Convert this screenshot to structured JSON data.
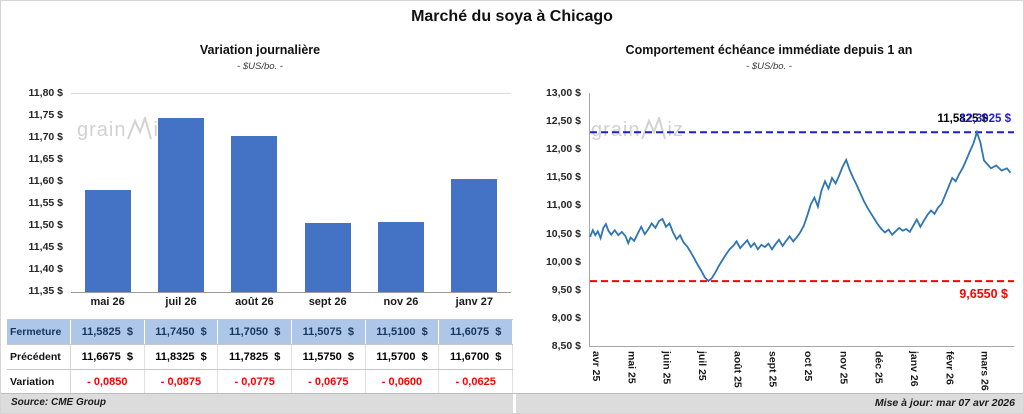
{
  "page": {
    "title": "Marché du soya à Chicago",
    "source": "Source: CME Group",
    "updated": "Mise à jour: mar 07 avr 2026"
  },
  "watermark": {
    "left": "grain",
    "right": "iz"
  },
  "colors": {
    "bar": "#4472C4",
    "line": "#2E75B6",
    "hline_high": "#1F1FC8",
    "hline_low": "#FF0000",
    "fermeture_bg": "#AEC6E8",
    "variation_text": "#FF0000"
  },
  "left_chart": {
    "title": "Variation journalière",
    "subtitle": "- $US/bo. -",
    "chart_data": {
      "type": "bar",
      "categories": [
        "mai 26",
        "juil 26",
        "août 26",
        "sept 26",
        "nov 26",
        "janv 27"
      ],
      "values": [
        11.5825,
        11.745,
        11.705,
        11.5075,
        11.51,
        11.6075
      ],
      "title": "Variation journalière",
      "xlabel": "",
      "ylabel": "$US/bo.",
      "ylim": [
        11.35,
        11.8
      ],
      "ytick_labels": [
        "11,80 $",
        "11,75 $",
        "11,70 $",
        "11,65 $",
        "11,60 $",
        "11,55 $",
        "11,50 $",
        "11,45 $",
        "11,40 $",
        "11,35 $"
      ],
      "grid": false,
      "bar_color": "#4472C4"
    },
    "table": {
      "rows": [
        {
          "id": "fermeture",
          "label": "Fermeture",
          "values": [
            "11,5825  $",
            "11,7450  $",
            "11,7050  $",
            "11,5075  $",
            "11,5100  $",
            "11,6075  $"
          ]
        },
        {
          "id": "precedent",
          "label": "Précédent",
          "values": [
            "11,6675  $",
            "11,8325  $",
            "11,7825  $",
            "11,5750  $",
            "11,5700  $",
            "11,6700  $"
          ]
        },
        {
          "id": "variation",
          "label": "Variation",
          "values": [
            "- 0,0850",
            "- 0,0875",
            "- 0,0775",
            "- 0,0675",
            "- 0,0600",
            "- 0,0625"
          ]
        }
      ]
    }
  },
  "right_chart": {
    "title": "Comportement échéance immédiate depuis 1 an",
    "subtitle": "- $US/bo. -",
    "chart_data": {
      "type": "line",
      "x_labels": [
        "avr 25",
        "mai 25",
        "juin 25",
        "juil 25",
        "août 25",
        "sept 25",
        "oct 25",
        "nov 25",
        "déc 25",
        "janv 26",
        "févr 26",
        "mars 26"
      ],
      "ylim": [
        8.5,
        13.0
      ],
      "ytick_labels": [
        "13,00 $",
        "12,50 $",
        "12,00 $",
        "11,50 $",
        "11,00 $",
        "10,50 $",
        "10,00 $",
        "9,50 $",
        "9,00 $",
        "8,50 $"
      ],
      "grid": false,
      "legend": "none",
      "last_label": "11,5825 $",
      "hline_high": {
        "value": 12.3025,
        "label": "12,3025 $",
        "color": "#1F1FC8"
      },
      "hline_low": {
        "value": 9.655,
        "label": "9,6550 $",
        "color": "#FF0000"
      },
      "series": [
        {
          "name": "échéance immédiate",
          "color": "#2E75B6",
          "points": [
            [
              0,
              10.44
            ],
            [
              0.08,
              10.56
            ],
            [
              0.15,
              10.47
            ],
            [
              0.22,
              10.54
            ],
            [
              0.3,
              10.42
            ],
            [
              0.38,
              10.6
            ],
            [
              0.45,
              10.67
            ],
            [
              0.52,
              10.55
            ],
            [
              0.6,
              10.48
            ],
            [
              0.7,
              10.56
            ],
            [
              0.8,
              10.47
            ],
            [
              0.9,
              10.53
            ],
            [
              1,
              10.46
            ],
            [
              1.08,
              10.33
            ],
            [
              1.15,
              10.43
            ],
            [
              1.25,
              10.37
            ],
            [
              1.35,
              10.5
            ],
            [
              1.45,
              10.62
            ],
            [
              1.55,
              10.49
            ],
            [
              1.65,
              10.58
            ],
            [
              1.75,
              10.68
            ],
            [
              1.85,
              10.6
            ],
            [
              1.95,
              10.72
            ],
            [
              2.05,
              10.76
            ],
            [
              2.15,
              10.62
            ],
            [
              2.25,
              10.68
            ],
            [
              2.35,
              10.52
            ],
            [
              2.45,
              10.4
            ],
            [
              2.55,
              10.47
            ],
            [
              2.65,
              10.34
            ],
            [
              2.75,
              10.27
            ],
            [
              2.85,
              10.17
            ],
            [
              2.95,
              10.06
            ],
            [
              3.05,
              9.94
            ],
            [
              3.15,
              9.84
            ],
            [
              3.25,
              9.72
            ],
            [
              3.35,
              9.655
            ],
            [
              3.45,
              9.71
            ],
            [
              3.55,
              9.81
            ],
            [
              3.65,
              9.93
            ],
            [
              3.75,
              10.03
            ],
            [
              3.85,
              10.13
            ],
            [
              3.95,
              10.22
            ],
            [
              4.05,
              10.28
            ],
            [
              4.15,
              10.36
            ],
            [
              4.25,
              10.24
            ],
            [
              4.35,
              10.31
            ],
            [
              4.45,
              10.38
            ],
            [
              4.55,
              10.26
            ],
            [
              4.65,
              10.33
            ],
            [
              4.75,
              10.22
            ],
            [
              4.85,
              10.3
            ],
            [
              4.95,
              10.26
            ],
            [
              5.05,
              10.32
            ],
            [
              5.15,
              10.22
            ],
            [
              5.25,
              10.31
            ],
            [
              5.35,
              10.39
            ],
            [
              5.45,
              10.28
            ],
            [
              5.55,
              10.37
            ],
            [
              5.65,
              10.45
            ],
            [
              5.75,
              10.36
            ],
            [
              5.85,
              10.43
            ],
            [
              5.95,
              10.52
            ],
            [
              6.05,
              10.64
            ],
            [
              6.15,
              10.82
            ],
            [
              6.25,
              11.02
            ],
            [
              6.35,
              11.14
            ],
            [
              6.45,
              10.98
            ],
            [
              6.55,
              11.26
            ],
            [
              6.65,
              11.43
            ],
            [
              6.75,
              11.3
            ],
            [
              6.85,
              11.49
            ],
            [
              6.95,
              11.39
            ],
            [
              7.05,
              11.53
            ],
            [
              7.15,
              11.69
            ],
            [
              7.25,
              11.81
            ],
            [
              7.35,
              11.63
            ],
            [
              7.45,
              11.49
            ],
            [
              7.55,
              11.36
            ],
            [
              7.65,
              11.22
            ],
            [
              7.75,
              11.08
            ],
            [
              7.85,
              10.96
            ],
            [
              7.95,
              10.86
            ],
            [
              8.05,
              10.76
            ],
            [
              8.15,
              10.66
            ],
            [
              8.25,
              10.58
            ],
            [
              8.35,
              10.52
            ],
            [
              8.45,
              10.57
            ],
            [
              8.55,
              10.48
            ],
            [
              8.65,
              10.54
            ],
            [
              8.75,
              10.6
            ],
            [
              8.85,
              10.55
            ],
            [
              8.95,
              10.58
            ],
            [
              9.05,
              10.53
            ],
            [
              9.15,
              10.64
            ],
            [
              9.25,
              10.75
            ],
            [
              9.35,
              10.62
            ],
            [
              9.45,
              10.73
            ],
            [
              9.55,
              10.83
            ],
            [
              9.65,
              10.91
            ],
            [
              9.75,
              10.85
            ],
            [
              9.85,
              10.96
            ],
            [
              9.95,
              11.03
            ],
            [
              10.05,
              11.18
            ],
            [
              10.15,
              11.33
            ],
            [
              10.25,
              11.49
            ],
            [
              10.35,
              11.43
            ],
            [
              10.45,
              11.56
            ],
            [
              10.55,
              11.67
            ],
            [
              10.65,
              11.81
            ],
            [
              10.75,
              11.96
            ],
            [
              10.85,
              12.1
            ],
            [
              10.95,
              12.3025
            ],
            [
              11.05,
              12.12
            ],
            [
              11.15,
              11.8
            ],
            [
              11.25,
              11.73
            ],
            [
              11.35,
              11.66
            ],
            [
              11.5,
              11.71
            ],
            [
              11.65,
              11.62
            ],
            [
              11.8,
              11.66
            ],
            [
              11.9,
              11.5825
            ]
          ]
        }
      ]
    }
  }
}
